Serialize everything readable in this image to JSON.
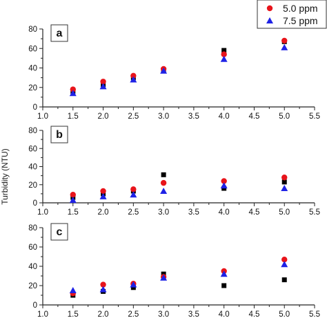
{
  "chart_data": [
    {
      "type": "scatter",
      "panel_label": "a",
      "xlim": [
        1.0,
        5.5
      ],
      "ylim": [
        0,
        80
      ],
      "xticks": [
        "1.0",
        "1.5",
        "2.0",
        "2.5",
        "3.0",
        "3.5",
        "4.0",
        "4.5",
        "5.0",
        "5.5"
      ],
      "yticks": [
        "0",
        "20",
        "40",
        "60",
        "80"
      ],
      "series": [
        {
          "x": [
            1.5,
            2.0,
            2.5,
            3.0,
            4.0,
            5.0
          ],
          "y": [
            16,
            23,
            30,
            38,
            58,
            67
          ]
        },
        {
          "name": "5.0 ppm",
          "x": [
            1.5,
            2.0,
            2.5,
            3.0,
            4.0,
            5.0
          ],
          "y": [
            18,
            26,
            32,
            39,
            54,
            68
          ]
        },
        {
          "name": "7.5 ppm",
          "x": [
            1.5,
            2.0,
            2.5,
            3.0,
            4.0,
            5.0
          ],
          "y": [
            14,
            21,
            28,
            37,
            49,
            61
          ]
        }
      ]
    },
    {
      "type": "scatter",
      "panel_label": "b",
      "xlim": [
        1.0,
        5.5
      ],
      "ylim": [
        0,
        80
      ],
      "xticks": [
        "1.0",
        "1.5",
        "2.0",
        "2.5",
        "3.0",
        "3.5",
        "4.0",
        "4.5",
        "5.0",
        "5.5"
      ],
      "yticks": [
        "0",
        "20",
        "40",
        "60",
        "80"
      ],
      "series": [
        {
          "x": [
            1.5,
            2.0,
            2.5,
            3.0,
            4.0,
            5.0
          ],
          "y": [
            6,
            10,
            13,
            31,
            16,
            23
          ]
        },
        {
          "name": "5.0 ppm",
          "x": [
            1.5,
            2.0,
            2.5,
            3.0,
            4.0,
            5.0
          ],
          "y": [
            9,
            13,
            15,
            22,
            24,
            28
          ]
        },
        {
          "name": "7.5 ppm",
          "x": [
            1.5,
            2.0,
            2.5,
            3.0,
            4.0,
            5.0
          ],
          "y": [
            3,
            7,
            9,
            13,
            19,
            16
          ]
        }
      ]
    },
    {
      "type": "scatter",
      "panel_label": "c",
      "xlim": [
        1.0,
        5.5
      ],
      "ylim": [
        0,
        80
      ],
      "xticks": [
        "1.0",
        "1.5",
        "2.0",
        "2.5",
        "3.0",
        "3.5",
        "4.0",
        "4.5",
        "5.0",
        "5.5"
      ],
      "yticks": [
        "0",
        "20",
        "40",
        "60",
        "80"
      ],
      "series": [
        {
          "x": [
            1.5,
            2.0,
            2.5,
            3.0,
            4.0,
            5.0
          ],
          "y": [
            10,
            14,
            18,
            32,
            20,
            26
          ]
        },
        {
          "name": "5.0 ppm",
          "x": [
            1.5,
            2.0,
            2.5,
            3.0,
            4.0,
            5.0
          ],
          "y": [
            12,
            21,
            22,
            29,
            35,
            47
          ]
        },
        {
          "name": "7.5 ppm",
          "x": [
            1.5,
            2.0,
            2.5,
            3.0,
            4.0,
            5.0
          ],
          "y": [
            15,
            16,
            21,
            28,
            32,
            42
          ]
        }
      ]
    }
  ],
  "ylabel": "Turbidity (NTU)",
  "legend": {
    "placement": "top-right",
    "entries": [
      {
        "label": "5.0 ppm",
        "marker": "circle",
        "color": "#e8141b"
      },
      {
        "label": "7.5 ppm",
        "marker": "triangle",
        "color": "#1f22e6"
      }
    ]
  },
  "series_styles": [
    {
      "marker": "square",
      "color": "#000000"
    },
    {
      "marker": "circle",
      "color": "#e8141b"
    },
    {
      "marker": "triangle",
      "color": "#1f22e6"
    }
  ]
}
